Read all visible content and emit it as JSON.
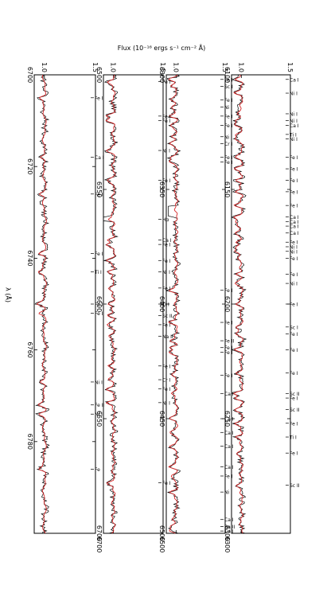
{
  "figure": {
    "ylabel": "Flux (10⁻¹⁶ ergs s⁻¹ cm⁻² Å)",
    "xlabel": "λ (Å)",
    "colors": {
      "observed": "#000000",
      "model": "#d62728",
      "frame": "#000000"
    }
  },
  "chart_data": [
    {
      "type": "line",
      "xlim": [
        6100,
        6300
      ],
      "ylim": [
        0.9,
        1.5
      ],
      "x_ticks": [
        6100,
        6150,
        6200,
        6250,
        6300
      ],
      "y_ticks": [
        1.0,
        1.5
      ],
      "series": [],
      "line_ids": [
        {
          "x": 6102,
          "label": "Ca I"
        },
        {
          "x": 6108,
          "label": "Ni I"
        },
        {
          "x": 6117,
          "label": "Ni I"
        },
        {
          "x": 6120,
          "label": "Ni I"
        },
        {
          "x": 6122,
          "label": "Ca I"
        },
        {
          "x": 6126,
          "label": "Ti I"
        },
        {
          "x": 6128,
          "label": "Ni I"
        },
        {
          "x": 6136,
          "label": "Fe I"
        },
        {
          "x": 6141,
          "label": "Fe I"
        },
        {
          "x": 6146,
          "label": "Fe I"
        },
        {
          "x": 6151,
          "label": "Fe I"
        },
        {
          "x": 6157,
          "label": "Fe I"
        },
        {
          "x": 6162,
          "label": "Ca I"
        },
        {
          "x": 6164,
          "label": "Ca I"
        },
        {
          "x": 6166,
          "label": "Ca I"
        },
        {
          "x": 6169,
          "label": "Ca I"
        },
        {
          "x": 6173,
          "label": "Fe I"
        },
        {
          "x": 6175,
          "label": "Ni I"
        },
        {
          "x": 6177,
          "label": "Ni I"
        },
        {
          "x": 6180,
          "label": "Fe I"
        },
        {
          "x": 6187,
          "label": "Fe I"
        },
        {
          "x": 6191,
          "label": "Ni I"
        },
        {
          "x": 6200,
          "label": "Fe I"
        },
        {
          "x": 6210,
          "label": "Sc I"
        },
        {
          "x": 6213,
          "label": "Fe I"
        },
        {
          "x": 6220,
          "label": "Fe I"
        },
        {
          "x": 6230,
          "label": "Fe I"
        },
        {
          "x": 6239,
          "label": "Sc II"
        },
        {
          "x": 6241,
          "label": "Fe I"
        },
        {
          "x": 6246,
          "label": "Sc II"
        },
        {
          "x": 6252,
          "label": "Fe I"
        },
        {
          "x": 6258,
          "label": "Ti I"
        },
        {
          "x": 6265,
          "label": "Fe I"
        },
        {
          "x": 6279,
          "label": "Sc II"
        }
      ]
    },
    {
      "type": "line",
      "xlim": [
        6300,
        6500
      ],
      "ylim": [
        0.9,
        1.5
      ],
      "x_ticks": [
        6300,
        6350,
        6400,
        6450,
        6500
      ],
      "y_ticks": [
        1.0,
        1.5
      ],
      "series": [],
      "line_ids": [
        {
          "x": 6302,
          "label": "Fe I"
        },
        {
          "x": 6305,
          "label": "Sc I"
        },
        {
          "x": 6311,
          "label": "Fe I"
        },
        {
          "x": 6314,
          "label": "Ni I"
        },
        {
          "x": 6318,
          "label": "Fe I"
        },
        {
          "x": 6322,
          "label": "Fe I"
        },
        {
          "x": 6327,
          "label": "Ni I"
        },
        {
          "x": 6330,
          "label": "Cr I"
        },
        {
          "x": 6336,
          "label": "Fe I"
        },
        {
          "x": 6338,
          "label": "Fe I"
        },
        {
          "x": 6394,
          "label": "Fe I"
        },
        {
          "x": 6408,
          "label": "Fe I"
        },
        {
          "x": 6416,
          "label": "Fe II"
        },
        {
          "x": 6419,
          "label": "Fe I"
        },
        {
          "x": 6421,
          "label": "Fe I"
        },
        {
          "x": 6431,
          "label": "Fe I"
        },
        {
          "x": 6439,
          "label": "Ca I"
        },
        {
          "x": 6450,
          "label": "Ca I"
        },
        {
          "x": 6456,
          "label": "Ca I"
        },
        {
          "x": 6462,
          "label": "Ca I"
        },
        {
          "x": 6471,
          "label": "Ca I"
        },
        {
          "x": 6475,
          "label": "Fe I"
        },
        {
          "x": 6482,
          "label": "Ni I"
        },
        {
          "x": 6494,
          "label": "Ca I"
        },
        {
          "x": 6497,
          "label": "Ba II"
        },
        {
          "x": 6499,
          "label": "Ca I"
        }
      ]
    },
    {
      "type": "line",
      "xlim": [
        6500,
        6700
      ],
      "ylim": [
        0.9,
        1.5
      ],
      "x_ticks": [
        6500,
        6550,
        6600,
        6650,
        6700
      ],
      "y_ticks": [
        1.0,
        1.5
      ],
      "series": [],
      "line_ids": [
        {
          "x": 6503,
          "label": "Fe I"
        },
        {
          "x": 6518,
          "label": "Fe I"
        },
        {
          "x": 6520,
          "label": "Fe I"
        },
        {
          "x": 6533,
          "label": "Ni I"
        },
        {
          "x": 6546,
          "label": "Fe I"
        },
        {
          "x": 6563,
          "label": "Hα"
        },
        {
          "x": 6572,
          "label": "Ca I"
        },
        {
          "x": 6574,
          "label": "Fe I"
        },
        {
          "x": 6581,
          "label": "Fe I"
        },
        {
          "x": 6586,
          "label": "Ni I"
        },
        {
          "x": 6593,
          "label": "Fe I"
        },
        {
          "x": 6600,
          "label": "Ti I"
        },
        {
          "x": 6605,
          "label": "Sc II"
        },
        {
          "x": 6609,
          "label": "Fe I"
        },
        {
          "x": 6614,
          "label": "Na II"
        },
        {
          "x": 6627,
          "label": "Fe I"
        },
        {
          "x": 6633,
          "label": "Cr I"
        },
        {
          "x": 6637,
          "label": "Fe I"
        },
        {
          "x": 6643,
          "label": "Ni I"
        },
        {
          "x": 6678,
          "label": "Fe I"
        }
      ]
    },
    {
      "type": "line",
      "xlim": [
        6700,
        6800
      ],
      "ylim": [
        0.9,
        1.5
      ],
      "x_ticks": [
        6700,
        6720,
        6740,
        6760,
        6780
      ],
      "y_ticks": [
        1.0,
        1.5
      ],
      "series": [],
      "line_ids": [
        {
          "x": 6705,
          "label": "Fe I"
        },
        {
          "x": 6718,
          "label": "Ca I"
        },
        {
          "x": 6726,
          "label": "Fe I"
        },
        {
          "x": 6739,
          "label": "Fe I"
        },
        {
          "x": 6743,
          "label": "Ti I"
        },
        {
          "x": 6750,
          "label": "Fe I"
        },
        {
          "x": 6752,
          "label": "Fe I"
        },
        {
          "x": 6767,
          "label": "Ni I"
        },
        {
          "x": 6772,
          "label": "Fe II"
        },
        {
          "x": 6774,
          "label": "Ni I"
        },
        {
          "x": 6786,
          "label": "Fe"
        }
      ]
    }
  ]
}
